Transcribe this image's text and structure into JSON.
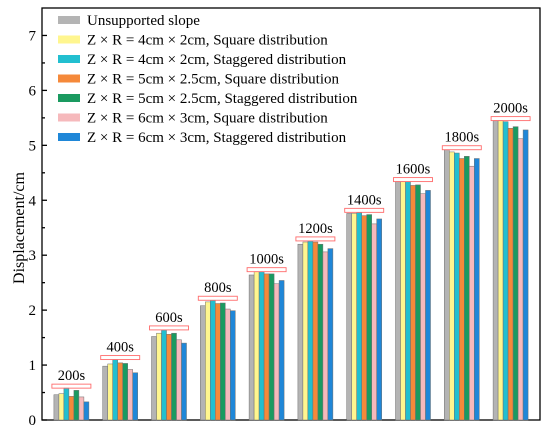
{
  "chart_data": {
    "type": "bar",
    "xlabel": "",
    "ylabel": "Displacement/cm",
    "ylim": [
      0,
      7.5
    ],
    "yticks": [
      "0",
      "1",
      "2",
      "3",
      "4",
      "5",
      "6",
      "7"
    ],
    "grid": false,
    "legend_position": "top-left",
    "categories": [
      "200s",
      "400s",
      "600s",
      "800s",
      "1000s",
      "1200s",
      "1400s",
      "1600s",
      "1800s",
      "2000s"
    ],
    "series": [
      {
        "name": "Unsupported slope",
        "color": "#b4b4b4",
        "values": [
          0.46,
          0.98,
          1.52,
          2.08,
          2.64,
          3.2,
          3.76,
          4.34,
          4.92,
          5.45
        ]
      },
      {
        "name": "Z × R = 4cm × 2cm, Square distribution",
        "color": "#fff68f",
        "values": [
          0.48,
          1.02,
          1.58,
          2.15,
          2.7,
          3.24,
          3.76,
          4.34,
          4.88,
          5.45
        ]
      },
      {
        "name": "Z × R = 4cm × 2cm, Staggered distribution",
        "color": "#22bfd0",
        "values": [
          0.58,
          1.1,
          1.64,
          2.18,
          2.7,
          3.26,
          3.78,
          4.34,
          4.86,
          5.43
        ]
      },
      {
        "name": "Z × R = 5cm × 2.5cm, Square distribution",
        "color": "#f5893a",
        "values": [
          0.43,
          1.04,
          1.56,
          2.12,
          2.66,
          3.24,
          3.72,
          4.27,
          4.76,
          5.31
        ]
      },
      {
        "name": "Z × R = 5cm × 2.5cm, Staggered distribution",
        "color": "#1a9a60",
        "values": [
          0.54,
          1.03,
          1.58,
          2.13,
          2.66,
          3.2,
          3.74,
          4.28,
          4.8,
          5.34
        ]
      },
      {
        "name": "Z × R = 6cm × 3cm, Square distribution",
        "color": "#f6b9bc",
        "values": [
          0.42,
          0.92,
          1.46,
          2.02,
          2.48,
          3.06,
          3.57,
          4.12,
          4.62,
          5.12
        ]
      },
      {
        "name": "Z × R = 6cm × 3cm, Staggered distribution",
        "color": "#1f87d8",
        "values": [
          0.33,
          0.86,
          1.4,
          1.99,
          2.54,
          3.12,
          3.66,
          4.18,
          4.76,
          5.28
        ]
      }
    ]
  }
}
